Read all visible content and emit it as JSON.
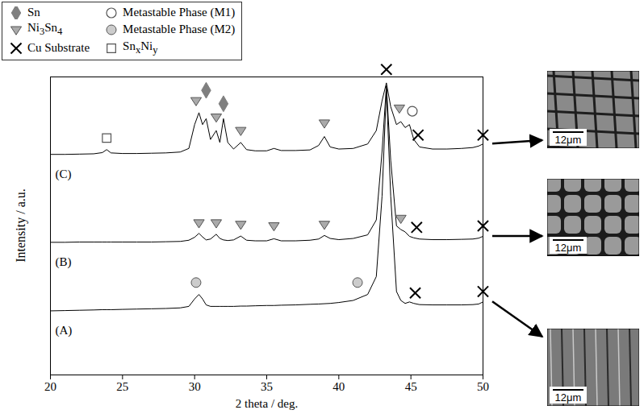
{
  "chart_data": {
    "type": "line",
    "x_label": "2 theta / deg.",
    "y_label": "Intensity / a.u.",
    "xlim": [
      20,
      50
    ],
    "xticks": [
      20,
      25,
      30,
      35,
      40,
      45,
      50
    ],
    "ylim": [
      0,
      100
    ],
    "tick_labels": "x",
    "legend": "top-left",
    "x": [
      20,
      21,
      22,
      23,
      23.6,
      23.9,
      24.2,
      25,
      26,
      27,
      28,
      29,
      29.6,
      30.0,
      30.3,
      30.55,
      30.8,
      31.1,
      31.5,
      31.75,
      32.0,
      32.3,
      32.7,
      33.2,
      33.6,
      34.2,
      35.0,
      35.5,
      36.0,
      37,
      38,
      38.6,
      39.0,
      39.4,
      40,
      41,
      42,
      42.6,
      43.0,
      43.3,
      43.6,
      44.0,
      44.3,
      44.6,
      44.9,
      45.2,
      45.6,
      46.5,
      47.5,
      48.5,
      49.3,
      49.7,
      50
    ],
    "series": [
      {
        "name": "(A)",
        "color": "#000000",
        "values": [
          21.5,
          21.6,
          21.7,
          21.8,
          21.9,
          21.9,
          21.9,
          22,
          22.1,
          22.2,
          22.3,
          22.5,
          23,
          25.5,
          27,
          25.5,
          23.5,
          23,
          23,
          23,
          23,
          23,
          23,
          23.1,
          23.1,
          23.2,
          23.3,
          23.3,
          23.4,
          23.5,
          23.7,
          23.8,
          23.9,
          24,
          24.3,
          25,
          27,
          33,
          60,
          96,
          60,
          28,
          25,
          24,
          24.5,
          24,
          23.6,
          23.5,
          23.5,
          23.5,
          23.6,
          23.8,
          24.5
        ]
      },
      {
        "name": "(B)",
        "color": "#000000",
        "values": [
          44.5,
          44.5,
          44.6,
          44.6,
          44.6,
          44.6,
          44.6,
          44.6,
          44.6,
          44.6,
          44.7,
          44.8,
          45.2,
          46.2,
          47.5,
          46.3,
          45.3,
          45.6,
          47.2,
          45.8,
          45.3,
          45.1,
          45.3,
          46.6,
          45.2,
          45,
          45,
          45.7,
          45,
          45,
          45.2,
          45.6,
          46.8,
          45.8,
          45.4,
          45.8,
          47,
          52,
          75,
          97,
          72,
          50,
          48.8,
          48,
          46.5,
          46,
          45.6,
          45.4,
          45.4,
          45.5,
          45.6,
          45.9,
          46.5
        ]
      },
      {
        "name": "(C)",
        "color": "#000000",
        "values": [
          74,
          74,
          74.1,
          74.2,
          74.6,
          75.6,
          74.5,
          74.3,
          74.3,
          74.4,
          74.5,
          74.8,
          76,
          84,
          88,
          84,
          86,
          79,
          82,
          78,
          86,
          78,
          75.8,
          78,
          75.6,
          75.2,
          75.2,
          76,
          75.3,
          75.3,
          75.5,
          77,
          80,
          76.5,
          75.8,
          76,
          77.5,
          82,
          92,
          98,
          90,
          84,
          85,
          83,
          84,
          79,
          76.5,
          75.8,
          75.8,
          76,
          76.3,
          76.8,
          77.5
        ]
      }
    ],
    "phases": [
      {
        "name": "Sn",
        "marker": "diamond",
        "color": "#7f7f7f"
      },
      {
        "name": "Metastable Phase (M1)",
        "marker": "circle-open",
        "color": "#555555"
      },
      {
        "name": "Ni3Sn4",
        "marker": "triangle-down",
        "color": "#aaaaaa"
      },
      {
        "name": "Metastable Phase (M2)",
        "marker": "circle",
        "color": "#cccccc"
      },
      {
        "name": "Cu Substrate",
        "marker": "x",
        "color": "#000000"
      },
      {
        "name": "SnxNiy",
        "marker": "square-open",
        "color": "#555555"
      }
    ],
    "markers": [
      {
        "phase": "SnxNiy",
        "x": 23.9,
        "y": 79.5
      },
      {
        "phase": "Ni3Sn4",
        "x": 30.1,
        "y": 92
      },
      {
        "phase": "Sn",
        "x": 30.8,
        "y": 95.5
      },
      {
        "phase": "Ni3Sn4",
        "x": 31.5,
        "y": 86.5
      },
      {
        "phase": "Sn",
        "x": 32.0,
        "y": 91
      },
      {
        "phase": "Ni3Sn4",
        "x": 33.2,
        "y": 82
      },
      {
        "phase": "Ni3Sn4",
        "x": 39.0,
        "y": 84.5
      },
      {
        "phase": "Cu Substrate",
        "x": 43.3,
        "y": 102.5
      },
      {
        "phase": "Ni3Sn4",
        "x": 44.2,
        "y": 89.5
      },
      {
        "phase": "Metastable Phase (M1)",
        "x": 45.1,
        "y": 88.5
      },
      {
        "phase": "Cu Substrate",
        "x": 45.5,
        "y": 80.5
      },
      {
        "phase": "Cu Substrate",
        "x": 50,
        "y": 80.5
      },
      {
        "phase": "Ni3Sn4",
        "x": 30.3,
        "y": 51
      },
      {
        "phase": "Ni3Sn4",
        "x": 31.5,
        "y": 51
      },
      {
        "phase": "Ni3Sn4",
        "x": 33.2,
        "y": 50.5
      },
      {
        "phase": "Ni3Sn4",
        "x": 35.5,
        "y": 50
      },
      {
        "phase": "Ni3Sn4",
        "x": 39.0,
        "y": 50.5
      },
      {
        "phase": "Ni3Sn4",
        "x": 44.3,
        "y": 52.5
      },
      {
        "phase": "Cu Substrate",
        "x": 45.4,
        "y": 49.5
      },
      {
        "phase": "Cu Substrate",
        "x": 50,
        "y": 50
      },
      {
        "phase": "Metastable Phase (M2)",
        "x": 30.1,
        "y": 31
      },
      {
        "phase": "Metastable Phase (M2)",
        "x": 41.3,
        "y": 31
      },
      {
        "phase": "Cu Substrate",
        "x": 45.3,
        "y": 27.5
      },
      {
        "phase": "Cu Substrate",
        "x": 50,
        "y": 28
      }
    ],
    "images": [
      {
        "trace": "(C)",
        "scale_bar": "12μm"
      },
      {
        "trace": "(B)",
        "scale_bar": "12μm"
      },
      {
        "trace": "(A)",
        "scale_bar": "12μm"
      }
    ]
  }
}
